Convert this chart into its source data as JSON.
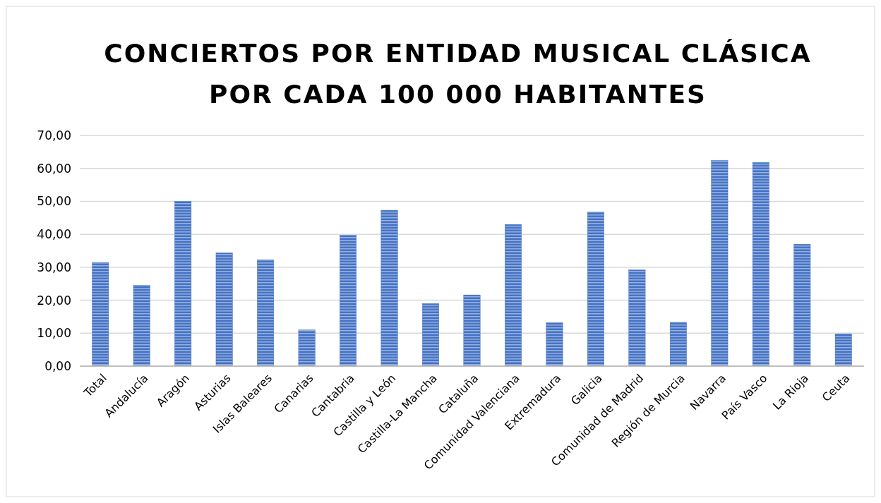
{
  "chart_data": {
    "type": "bar",
    "title": "CONCIERTOS POR ENTIDAD MUSICAL CLÁSICA POR CADA 100 000 HABITANTES",
    "categories": [
      "Total",
      "Andalucía",
      "Aragón",
      "Asturias",
      "Islas Baleares",
      "Canarias",
      "Cantabria",
      "Castilla y León",
      "Castilla-La Mancha",
      "Cataluña",
      "Comunidad Valenciana",
      "Extremadura",
      "Galicia",
      "Comunidad de Madrid",
      "Región de Murcia",
      "Navarra",
      "País Vasco",
      "La Rioja",
      "Ceuta"
    ],
    "values": [
      31.5,
      24.5,
      50.0,
      34.4,
      32.3,
      11.0,
      39.7,
      47.3,
      19.0,
      21.6,
      43.0,
      13.2,
      46.8,
      29.2,
      13.3,
      62.4,
      61.8,
      37.0,
      9.8
    ],
    "color": "#4472c4",
    "ylim": [
      0,
      70
    ],
    "yticks": [
      {
        "value": 0,
        "label": "0,00"
      },
      {
        "value": 10,
        "label": "10,00"
      },
      {
        "value": 20,
        "label": "20,00"
      },
      {
        "value": 30,
        "label": "30,00"
      },
      {
        "value": 40,
        "label": "40,00"
      },
      {
        "value": 50,
        "label": "50,00"
      },
      {
        "value": 60,
        "label": "60,00"
      },
      {
        "value": 70,
        "label": "70,00"
      }
    ],
    "grid": "y"
  }
}
